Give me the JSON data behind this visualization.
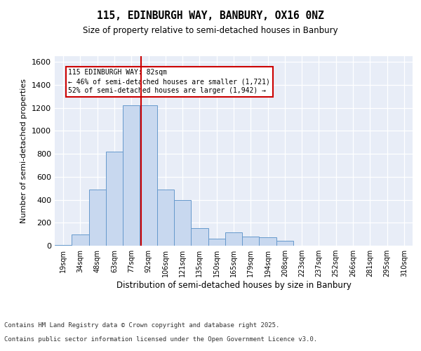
{
  "title_line1": "115, EDINBURGH WAY, BANBURY, OX16 0NZ",
  "title_line2": "Size of property relative to semi-detached houses in Banbury",
  "xlabel": "Distribution of semi-detached houses by size in Banbury",
  "ylabel": "Number of semi-detached properties",
  "categories": [
    "19sqm",
    "34sqm",
    "48sqm",
    "63sqm",
    "77sqm",
    "92sqm",
    "106sqm",
    "121sqm",
    "135sqm",
    "150sqm",
    "165sqm",
    "179sqm",
    "194sqm",
    "208sqm",
    "223sqm",
    "237sqm",
    "252sqm",
    "266sqm",
    "281sqm",
    "295sqm",
    "310sqm"
  ],
  "values": [
    5,
    100,
    490,
    820,
    1220,
    1220,
    490,
    400,
    155,
    60,
    115,
    80,
    75,
    40,
    0,
    0,
    0,
    0,
    0,
    0,
    0
  ],
  "bar_color": "#c8d8ef",
  "bar_edge_color": "#6699cc",
  "vline_x": 4.55,
  "vline_color": "#cc0000",
  "annotation_box_text": "115 EDINBURGH WAY: 82sqm\n← 46% of semi-detached houses are smaller (1,721)\n52% of semi-detached houses are larger (1,942) →",
  "ylim": [
    0,
    1650
  ],
  "yticks": [
    0,
    200,
    400,
    600,
    800,
    1000,
    1200,
    1400,
    1600
  ],
  "background_color": "#e8edf7",
  "footer_line1": "Contains HM Land Registry data © Crown copyright and database right 2025.",
  "footer_line2": "Contains public sector information licensed under the Open Government Licence v3.0."
}
